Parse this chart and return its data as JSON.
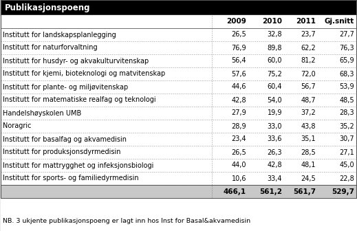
{
  "title": "Publikasjonspoeng",
  "columns": [
    "2009",
    "2010",
    "2011",
    "Gj.snitt"
  ],
  "rows": [
    [
      "Institutt for landskapsplanlegging",
      26.5,
      32.8,
      23.7,
      27.7
    ],
    [
      "Institutt for naturforvaltning",
      76.9,
      89.8,
      62.2,
      76.3
    ],
    [
      "Institutt for husdyr- og akvakulturvitenskap",
      56.4,
      60.0,
      81.2,
      65.9
    ],
    [
      "Institutt for kjemi, bioteknologi og matvitenskap",
      57.6,
      75.2,
      72.0,
      68.3
    ],
    [
      "Institutt for plante- og miljøvitenskap",
      44.6,
      60.4,
      56.7,
      53.9
    ],
    [
      "Institutt for matematiske realfag og teknologi",
      42.8,
      54.0,
      48.7,
      48.5
    ],
    [
      "Handelshøyskolen UMB",
      27.9,
      19.9,
      37.2,
      28.3
    ],
    [
      "Noragric",
      28.9,
      33.0,
      43.8,
      35.2
    ],
    [
      "Institutt for basalfag og akvamedisin",
      23.4,
      33.6,
      35.1,
      30.7
    ],
    [
      "Institutt for produksjonsdyrmedisin",
      26.5,
      26.3,
      28.5,
      27.1
    ],
    [
      "Institutt for mattrygghet og infeksjonsbiologi",
      44.0,
      42.8,
      48.1,
      45.0
    ],
    [
      "Institutt for sports- og familiedyrmedisin",
      10.6,
      33.4,
      24.5,
      22.8
    ]
  ],
  "totals": [
    466.1,
    561.2,
    561.7,
    529.7
  ],
  "footnote": "NB. 3 ukjente publikasjonspoeng er lagt inn hos Inst for Basal&akvamedisin",
  "header_bg": "#000000",
  "col_header_bg": "#ffffff",
  "row_bg": "#ffffff",
  "total_bg": "#c8c8c8",
  "outer_bg": "#e8e8e8",
  "border_color": "#888888",
  "solid_border": "#555555",
  "text_color": "#000000",
  "title_color": "#ffffff"
}
